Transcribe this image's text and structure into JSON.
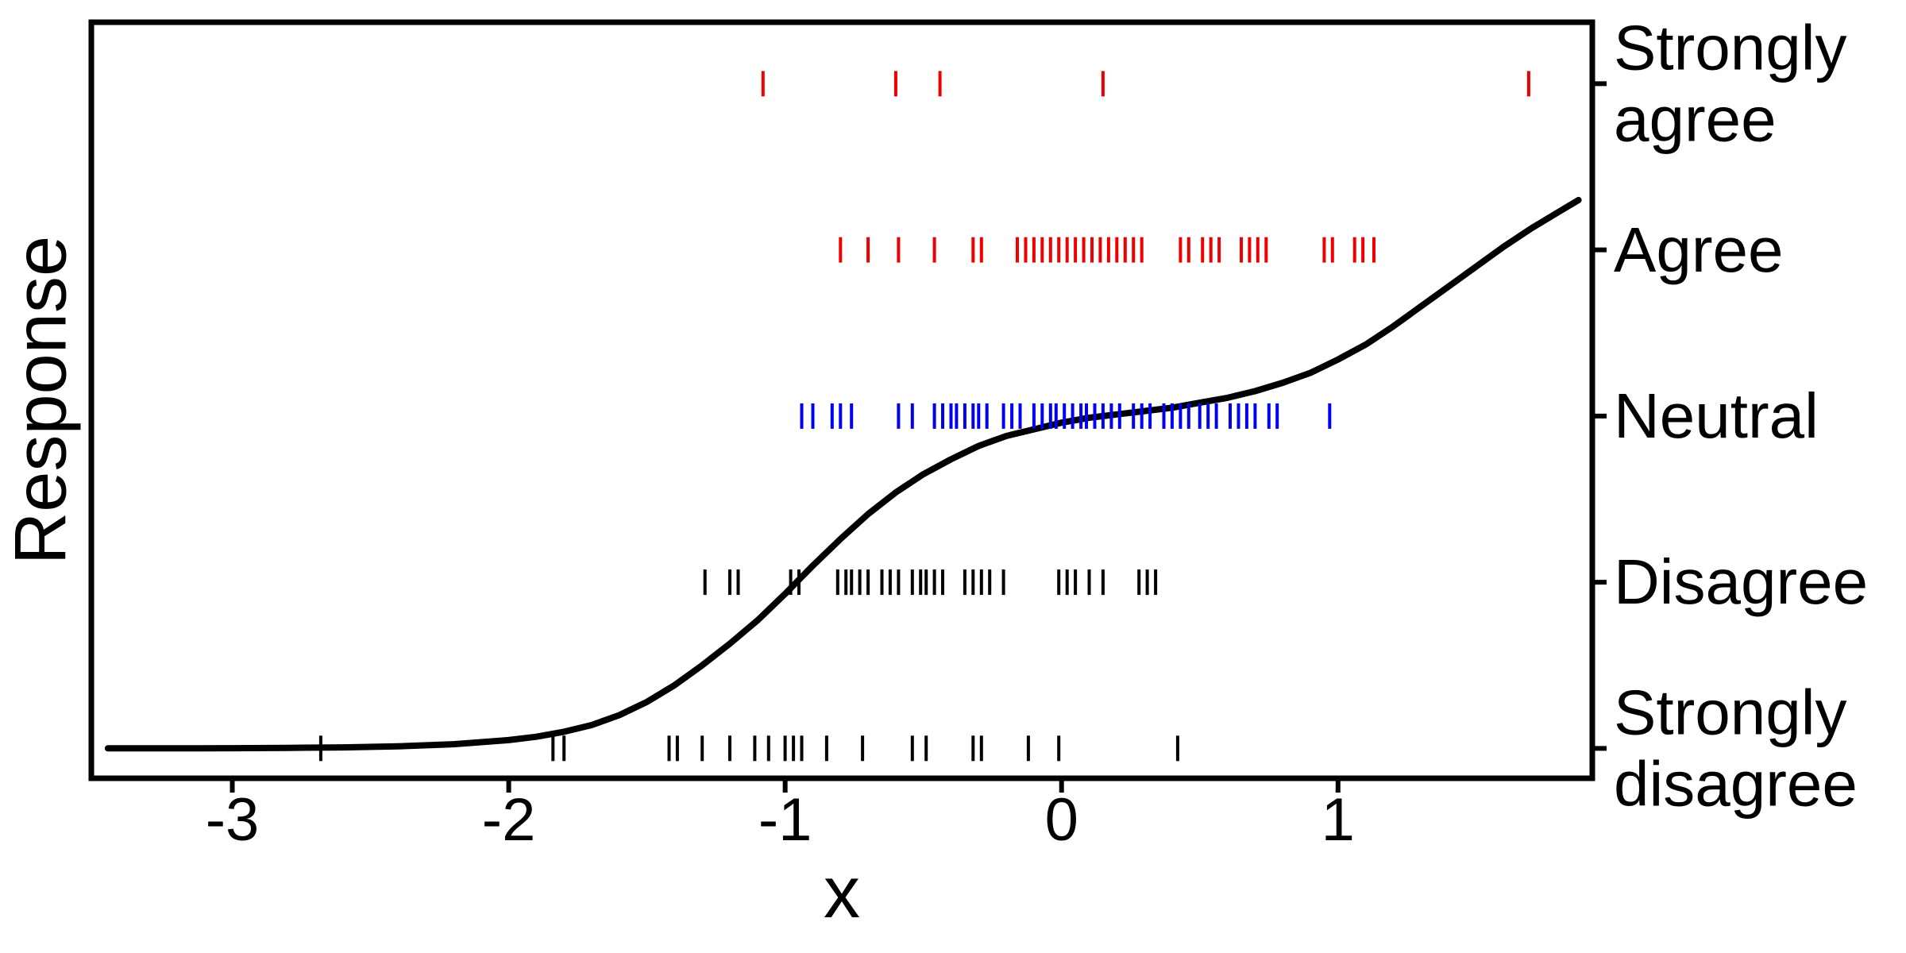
{
  "figure": {
    "title": ""
  },
  "chart_data": {
    "type": "scatter",
    "subtype": "rug-strips-by-category-with-fitted-curve",
    "title": "",
    "xlabel": "x",
    "ylabel": "Response",
    "grid": false,
    "legend": "none",
    "xlim": [
      -3.51,
      1.92
    ],
    "ylim_levels": [
      0.82,
      5.37
    ],
    "x_ticks": [
      -3,
      -2,
      -1,
      0,
      1
    ],
    "categories": [
      {
        "label": "Strongly agree",
        "level": 5,
        "color": "#ee0000"
      },
      {
        "label": "Agree",
        "level": 4,
        "color": "#ee0000"
      },
      {
        "label": "Neutral",
        "level": 3,
        "color": "#0000ee"
      },
      {
        "label": "Disagree",
        "level": 2,
        "color": "#000000"
      },
      {
        "label": "Strongly disagree",
        "level": 1,
        "color": "#000000"
      }
    ],
    "rug_series": [
      {
        "category": "Strongly agree",
        "level": 5,
        "color": "#ee0000",
        "x": [
          -1.08,
          -0.6,
          -0.44,
          0.15,
          1.69
        ]
      },
      {
        "category": "Agree",
        "level": 4,
        "color": "#ee0000",
        "x": [
          -0.8,
          -0.7,
          -0.59,
          -0.46,
          -0.32,
          -0.29,
          -0.16,
          -0.13,
          -0.1,
          -0.07,
          -0.04,
          -0.01,
          0.02,
          0.05,
          0.08,
          0.11,
          0.14,
          0.17,
          0.2,
          0.23,
          0.26,
          0.29,
          0.43,
          0.46,
          0.51,
          0.54,
          0.57,
          0.65,
          0.68,
          0.71,
          0.74,
          0.95,
          0.98,
          1.06,
          1.09,
          1.13
        ]
      },
      {
        "category": "Neutral",
        "level": 3,
        "color": "#0000ee",
        "x": [
          -0.94,
          -0.9,
          -0.83,
          -0.8,
          -0.76,
          -0.59,
          -0.54,
          -0.46,
          -0.43,
          -0.4,
          -0.38,
          -0.35,
          -0.32,
          -0.3,
          -0.27,
          -0.21,
          -0.18,
          -0.15,
          -0.1,
          -0.07,
          -0.04,
          -0.02,
          0.01,
          0.04,
          0.07,
          0.09,
          0.12,
          0.15,
          0.18,
          0.21,
          0.26,
          0.29,
          0.32,
          0.37,
          0.4,
          0.43,
          0.46,
          0.5,
          0.53,
          0.56,
          0.61,
          0.64,
          0.67,
          0.7,
          0.75,
          0.78,
          0.97
        ]
      },
      {
        "category": "Disagree",
        "level": 2,
        "color": "#000000",
        "x": [
          -1.29,
          -1.2,
          -1.17,
          -0.98,
          -0.95,
          -0.81,
          -0.78,
          -0.76,
          -0.73,
          -0.7,
          -0.65,
          -0.62,
          -0.59,
          -0.54,
          -0.51,
          -0.49,
          -0.46,
          -0.43,
          -0.35,
          -0.32,
          -0.29,
          -0.26,
          -0.21,
          -0.01,
          0.02,
          0.05,
          0.1,
          0.15,
          0.28,
          0.31,
          0.34
        ]
      },
      {
        "category": "Strongly disagree",
        "level": 1,
        "color": "#000000",
        "x": [
          -2.68,
          -1.84,
          -1.8,
          -1.42,
          -1.39,
          -1.3,
          -1.2,
          -1.11,
          -1.06,
          -1.0,
          -0.97,
          -0.94,
          -0.85,
          -0.72,
          -0.54,
          -0.49,
          -0.32,
          -0.29,
          -0.12,
          -0.01,
          0.42
        ]
      }
    ],
    "curve": {
      "color": "#000000",
      "points": [
        [
          -3.45,
          1.0
        ],
        [
          -3.2,
          1.0
        ],
        [
          -3.0,
          1.001
        ],
        [
          -2.8,
          1.003
        ],
        [
          -2.6,
          1.006
        ],
        [
          -2.4,
          1.012
        ],
        [
          -2.2,
          1.025
        ],
        [
          -2.0,
          1.05
        ],
        [
          -1.9,
          1.07
        ],
        [
          -1.8,
          1.1
        ],
        [
          -1.7,
          1.14
        ],
        [
          -1.6,
          1.2
        ],
        [
          -1.5,
          1.28
        ],
        [
          -1.4,
          1.38
        ],
        [
          -1.3,
          1.5
        ],
        [
          -1.2,
          1.63
        ],
        [
          -1.1,
          1.77
        ],
        [
          -1.0,
          1.93
        ],
        [
          -0.9,
          2.1
        ],
        [
          -0.8,
          2.26
        ],
        [
          -0.7,
          2.41
        ],
        [
          -0.6,
          2.54
        ],
        [
          -0.5,
          2.65
        ],
        [
          -0.4,
          2.74
        ],
        [
          -0.3,
          2.82
        ],
        [
          -0.2,
          2.88
        ],
        [
          -0.1,
          2.92
        ],
        [
          0.0,
          2.96
        ],
        [
          0.1,
          2.99
        ],
        [
          0.2,
          3.01
        ],
        [
          0.3,
          3.03
        ],
        [
          0.4,
          3.05
        ],
        [
          0.5,
          3.08
        ],
        [
          0.6,
          3.11
        ],
        [
          0.7,
          3.15
        ],
        [
          0.8,
          3.2
        ],
        [
          0.9,
          3.26
        ],
        [
          1.0,
          3.34
        ],
        [
          1.1,
          3.43
        ],
        [
          1.2,
          3.54
        ],
        [
          1.3,
          3.66
        ],
        [
          1.4,
          3.78
        ],
        [
          1.5,
          3.9
        ],
        [
          1.6,
          4.02
        ],
        [
          1.7,
          4.13
        ],
        [
          1.8,
          4.23
        ],
        [
          1.87,
          4.3
        ]
      ]
    }
  }
}
